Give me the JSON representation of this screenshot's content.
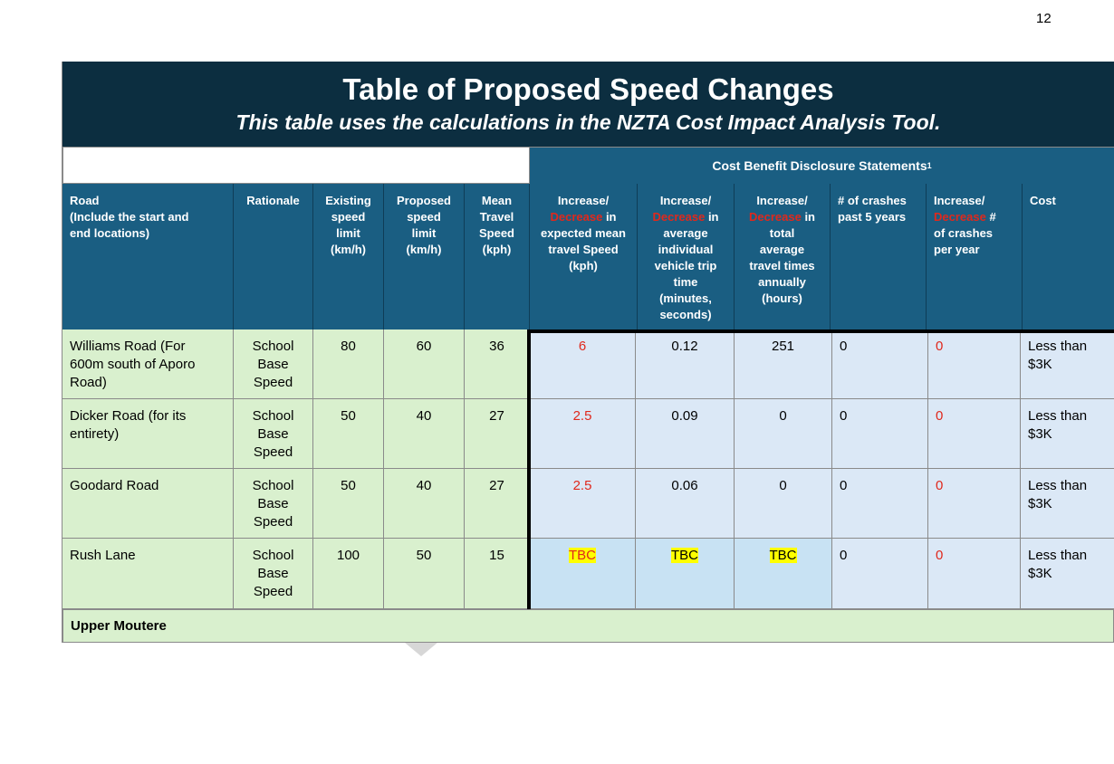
{
  "page_number": "12",
  "title": "Table of Proposed Speed Changes",
  "subtitle": "This table uses the calculations in the NZTA Cost Impact Analysis Tool.",
  "cba_header": "Cost Benefit Disclosure Statements",
  "cba_footnote": "1",
  "headers": {
    "road_l1": "Road",
    "road_l2": "(Include the start and",
    "road_l3": "end locations)",
    "rationale": "Rationale",
    "existing": [
      "Existing",
      "speed",
      "limit",
      "(km/h)"
    ],
    "proposed": [
      "Proposed",
      "speed",
      "limit",
      "(km/h)"
    ],
    "mean": [
      "Mean",
      "Travel",
      "Speed",
      "(kph)"
    ],
    "inc_speed": {
      "a": "Increase/",
      "b": "Decrease",
      "c": " in",
      "d": "expected mean",
      "e": "travel Speed",
      "f": "(kph)"
    },
    "inc_trip": {
      "a": "Increase/",
      "b": "Decrease",
      "c": " in",
      "d": "average",
      "e": "individual",
      "f": "vehicle trip",
      "g": "time",
      "h": "(minutes,",
      "i": "seconds)"
    },
    "inc_total": {
      "a": "Increase/",
      "b": "Decrease",
      "c": " in",
      "d": "total",
      "e": "average",
      "f": "travel times",
      "g": "annually",
      "h": "(hours)"
    },
    "crashes": [
      "# of crashes",
      "past 5 years"
    ],
    "inc_crashes": {
      "a": "Increase/",
      "b": "Decrease",
      "c": " #",
      "d": "of crashes",
      "e": "per year"
    },
    "cost": "Cost"
  },
  "rows": [
    {
      "road": [
        "Williams Road (For",
        "600m south of Aporo",
        "Road)"
      ],
      "rationale": [
        "School",
        "Base",
        "Speed"
      ],
      "existing": "80",
      "proposed": "60",
      "mean": "36",
      "inc_speed": "6",
      "inc_trip": "0.12",
      "inc_total": "251",
      "crashes": "0",
      "inc_crashes": "0",
      "cost": [
        "Less than",
        "$3K"
      ]
    },
    {
      "road": [
        "Dicker Road (for its",
        "entirety)",
        ""
      ],
      "rationale": [
        "School",
        "Base",
        "Speed"
      ],
      "existing": "50",
      "proposed": "40",
      "mean": "27",
      "inc_speed": "2.5",
      "inc_trip": "0.09",
      "inc_total": "0",
      "crashes": "0",
      "inc_crashes": "0",
      "cost": [
        "Less than",
        "$3K"
      ]
    },
    {
      "road": [
        "Goodard Road",
        "",
        ""
      ],
      "rationale": [
        "School",
        "Base",
        "Speed"
      ],
      "existing": "50",
      "proposed": "40",
      "mean": "27",
      "inc_speed": "2.5",
      "inc_trip": "0.06",
      "inc_total": "0",
      "crashes": "0",
      "inc_crashes": "0",
      "cost": [
        "Less than",
        "$3K"
      ]
    },
    {
      "road": [
        "Rush Lane",
        "",
        ""
      ],
      "rationale": [
        "School",
        "Base",
        "Speed"
      ],
      "existing": "100",
      "proposed": "50",
      "mean": "15",
      "inc_speed": "TBC",
      "inc_trip": "TBC",
      "inc_total": "TBC",
      "crashes": "0",
      "inc_crashes": "0",
      "cost": [
        "Less than",
        "$3K"
      ]
    }
  ],
  "footer_row": "Upper Moutere",
  "colors": {
    "banner": "#0c2e40",
    "header": "#1a5e82",
    "green": "#d9f0ce",
    "blue": "#dbe8f6",
    "red": "#e0281c",
    "highlight": "#ffff00"
  }
}
